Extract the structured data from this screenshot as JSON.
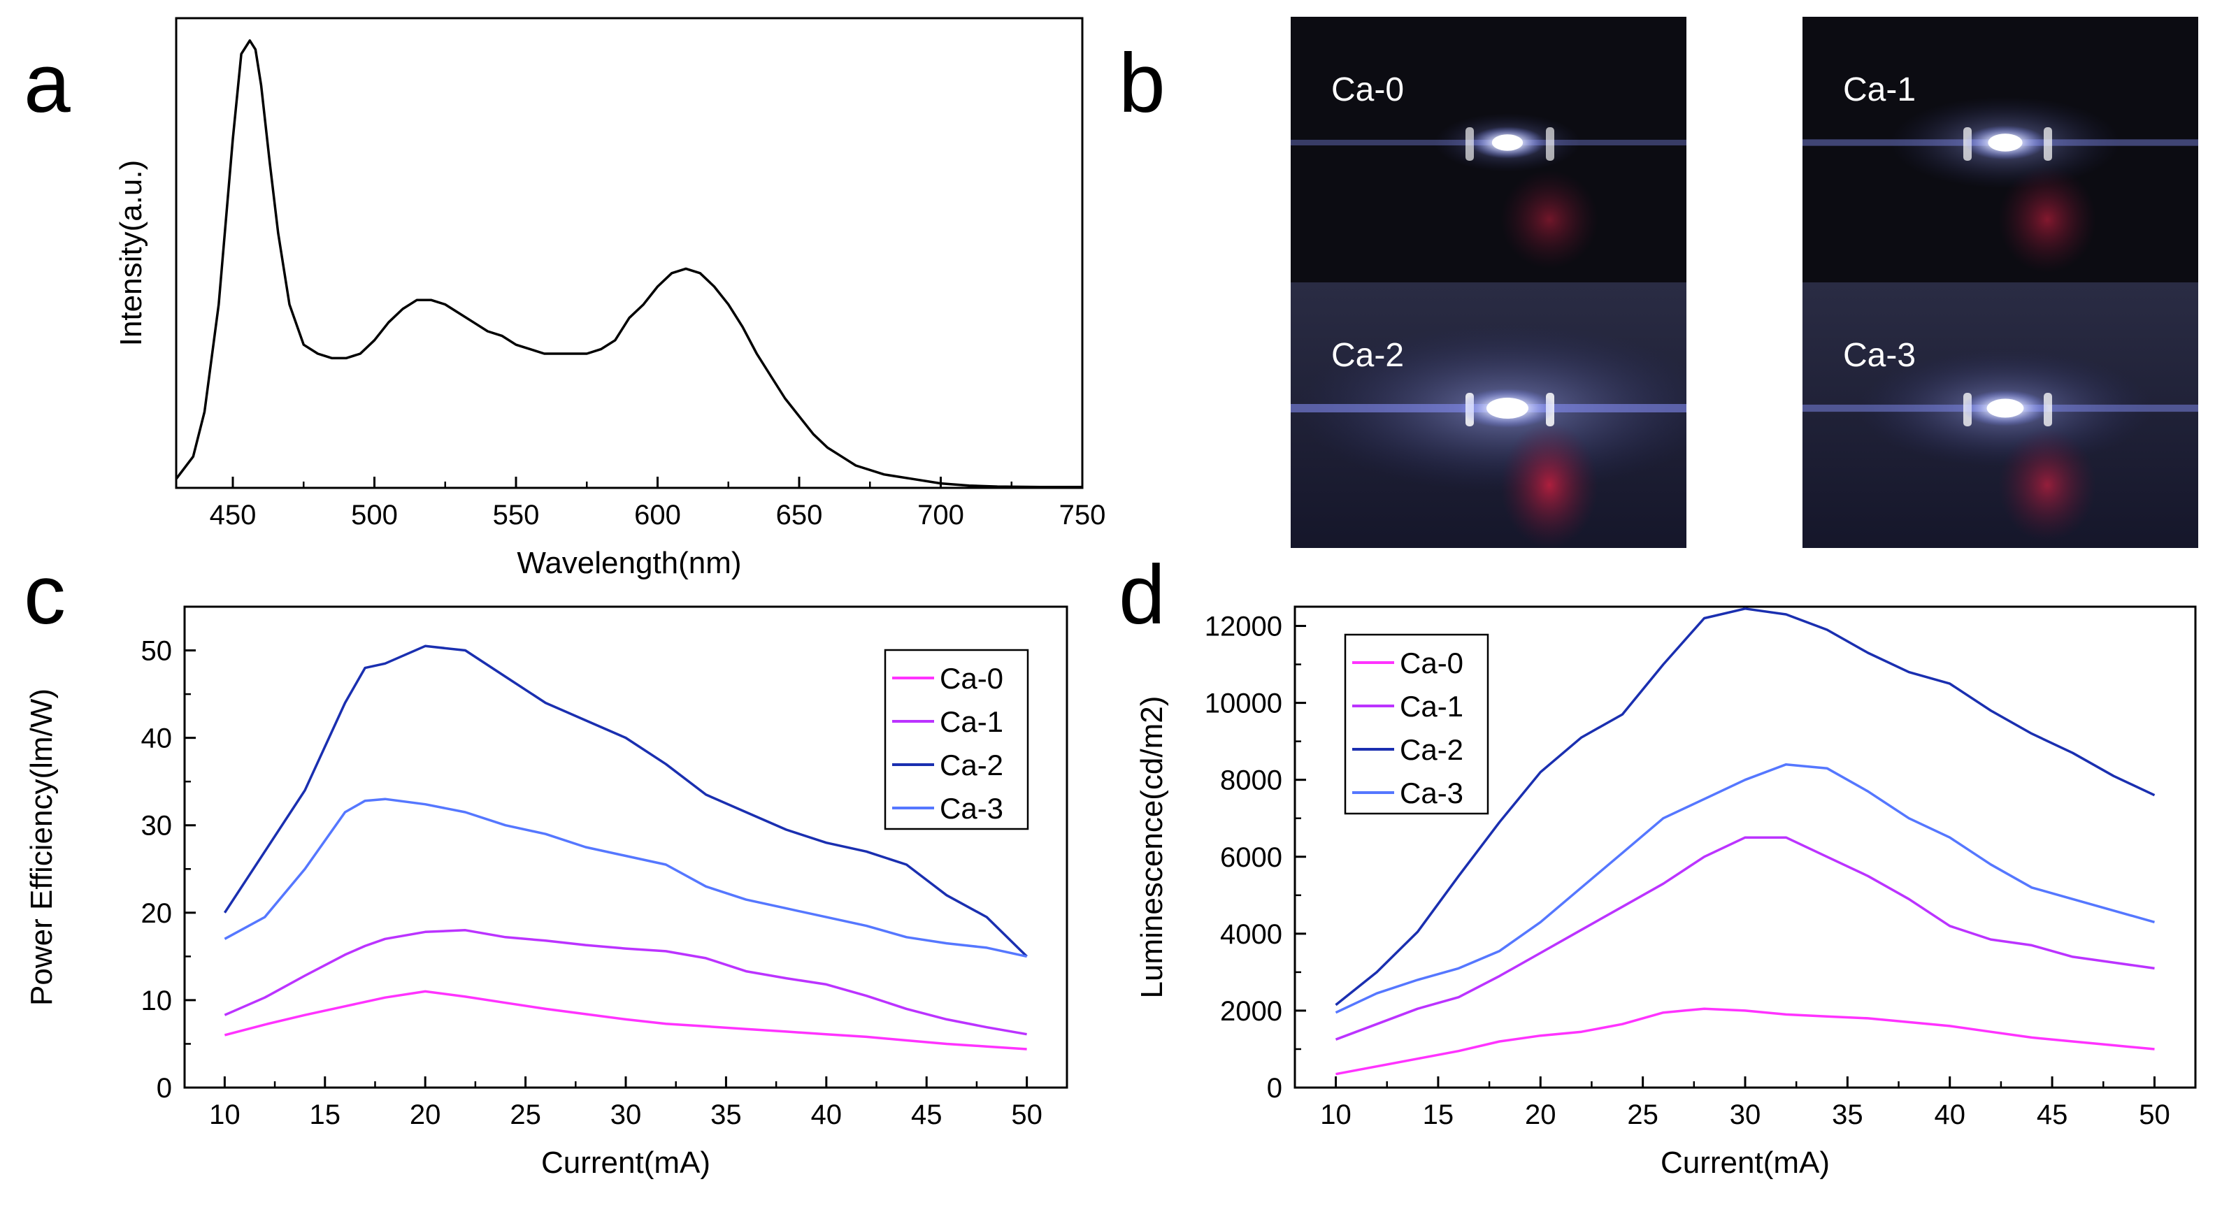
{
  "panel_labels": {
    "a": "a",
    "b": "b",
    "c": "c",
    "d": "d"
  },
  "colors": {
    "ca0": "#ff33ff",
    "ca1": "#bb33ff",
    "ca2": "#1a2fb0",
    "ca3": "#5577ff",
    "axis": "#000000",
    "spectrum": "#000000"
  },
  "photos": {
    "labels": [
      "Ca-0",
      "Ca-1",
      "Ca-2",
      "Ca-3"
    ],
    "brightness": [
      0.35,
      0.55,
      1.0,
      0.7
    ]
  },
  "chart_data": [
    {
      "panel": "a",
      "type": "line",
      "title": "",
      "xlabel": "Wavelength(nm)",
      "ylabel": "Intensity(a.u.)",
      "xlim": [
        430,
        750
      ],
      "ylim": [
        0,
        1.05
      ],
      "xticks": [
        450,
        500,
        550,
        600,
        650,
        700,
        750
      ],
      "yticks_shown": false,
      "series": [
        {
          "name": "spectrum",
          "x": [
            430,
            436,
            440,
            445,
            450,
            453,
            456,
            458,
            460,
            463,
            466,
            470,
            475,
            480,
            485,
            490,
            495,
            500,
            505,
            510,
            515,
            520,
            525,
            530,
            535,
            540,
            545,
            550,
            555,
            560,
            565,
            570,
            575,
            580,
            585,
            590,
            595,
            600,
            605,
            610,
            615,
            620,
            625,
            630,
            635,
            640,
            645,
            650,
            655,
            660,
            665,
            670,
            680,
            690,
            700,
            710,
            720,
            735,
            750
          ],
          "y": [
            0.02,
            0.07,
            0.17,
            0.41,
            0.78,
            0.97,
            1.0,
            0.98,
            0.9,
            0.73,
            0.57,
            0.41,
            0.32,
            0.3,
            0.29,
            0.29,
            0.3,
            0.33,
            0.37,
            0.4,
            0.42,
            0.42,
            0.41,
            0.39,
            0.37,
            0.35,
            0.34,
            0.32,
            0.31,
            0.3,
            0.3,
            0.3,
            0.3,
            0.31,
            0.33,
            0.38,
            0.41,
            0.45,
            0.48,
            0.49,
            0.48,
            0.45,
            0.41,
            0.36,
            0.3,
            0.25,
            0.2,
            0.16,
            0.12,
            0.09,
            0.07,
            0.05,
            0.03,
            0.02,
            0.01,
            0.005,
            0.003,
            0.002,
            0.002
          ]
        }
      ]
    },
    {
      "panel": "c",
      "type": "line",
      "title": "",
      "xlabel": "Current(mA)",
      "ylabel": "Power Efficiency(lm/W)",
      "xlim": [
        8,
        52
      ],
      "ylim": [
        0,
        55
      ],
      "xticks": [
        10,
        15,
        20,
        25,
        30,
        35,
        40,
        45,
        50
      ],
      "yticks": [
        0,
        10,
        20,
        30,
        40,
        50
      ],
      "legend": "top-right",
      "x": [
        10,
        12,
        14,
        16,
        17,
        18,
        20,
        22,
        24,
        26,
        28,
        30,
        32,
        34,
        36,
        38,
        40,
        42,
        44,
        46,
        48,
        50
      ],
      "series": [
        {
          "name": "Ca-0",
          "color_key": "ca0",
          "values": [
            6,
            7.2,
            8.3,
            9.3,
            9.8,
            10.3,
            11,
            10.4,
            9.7,
            9.0,
            8.4,
            7.8,
            7.3,
            7.0,
            6.7,
            6.4,
            6.1,
            5.8,
            5.4,
            5.0,
            4.7,
            4.4
          ]
        },
        {
          "name": "Ca-1",
          "color_key": "ca1",
          "values": [
            8.3,
            10.3,
            12.8,
            15.2,
            16.2,
            17.0,
            17.8,
            18.0,
            17.2,
            16.8,
            16.3,
            15.9,
            15.6,
            14.8,
            13.3,
            12.5,
            11.8,
            10.5,
            9.0,
            7.8,
            6.9,
            6.1
          ]
        },
        {
          "name": "Ca-2",
          "color_key": "ca2",
          "values": [
            20,
            27,
            34,
            44,
            48,
            48.5,
            50.5,
            50,
            47,
            44,
            42,
            40,
            37,
            33.5,
            31.5,
            29.5,
            28,
            27,
            25.5,
            22,
            19.5,
            15
          ]
        },
        {
          "name": "Ca-3",
          "color_key": "ca3",
          "values": [
            17,
            19.5,
            25,
            31.5,
            32.8,
            33,
            32.4,
            31.5,
            30,
            29,
            27.5,
            26.5,
            25.5,
            23,
            21.5,
            20.5,
            19.5,
            18.5,
            17.2,
            16.5,
            16.0,
            15
          ]
        }
      ]
    },
    {
      "panel": "d",
      "type": "line",
      "title": "",
      "xlabel": "Current(mA)",
      "ylabel": "Luminescence(cd/m2)",
      "xlim": [
        8,
        52
      ],
      "ylim": [
        0,
        12500
      ],
      "xticks": [
        10,
        15,
        20,
        25,
        30,
        35,
        40,
        45,
        50
      ],
      "yticks": [
        0,
        2000,
        4000,
        6000,
        8000,
        10000,
        12000
      ],
      "legend": "top-left",
      "x": [
        10,
        12,
        14,
        16,
        18,
        20,
        22,
        24,
        26,
        28,
        30,
        32,
        34,
        36,
        38,
        40,
        42,
        44,
        46,
        48,
        50
      ],
      "series": [
        {
          "name": "Ca-0",
          "color_key": "ca0",
          "values": [
            350,
            550,
            750,
            950,
            1200,
            1350,
            1450,
            1650,
            1950,
            2050,
            2000,
            1900,
            1850,
            1800,
            1700,
            1600,
            1450,
            1300,
            1200,
            1100,
            1000
          ]
        },
        {
          "name": "Ca-1",
          "color_key": "ca1",
          "values": [
            1250,
            1650,
            2050,
            2350,
            2900,
            3500,
            4100,
            4700,
            5300,
            6000,
            6500,
            6500,
            6000,
            5500,
            4900,
            4200,
            3850,
            3700,
            3400,
            3250,
            3100
          ]
        },
        {
          "name": "Ca-2",
          "color_key": "ca2",
          "values": [
            2150,
            3000,
            4050,
            5500,
            6900,
            8200,
            9100,
            9700,
            11000,
            12200,
            12450,
            12300,
            11900,
            11300,
            10800,
            10500,
            9800,
            9200,
            8700,
            8100,
            7600
          ]
        },
        {
          "name": "Ca-3",
          "color_key": "ca3",
          "values": [
            1950,
            2450,
            2800,
            3100,
            3550,
            4300,
            5200,
            6100,
            7000,
            7500,
            8000,
            8400,
            8300,
            7700,
            7000,
            6500,
            5800,
            5200,
            4900,
            4600,
            4300
          ]
        }
      ]
    }
  ]
}
